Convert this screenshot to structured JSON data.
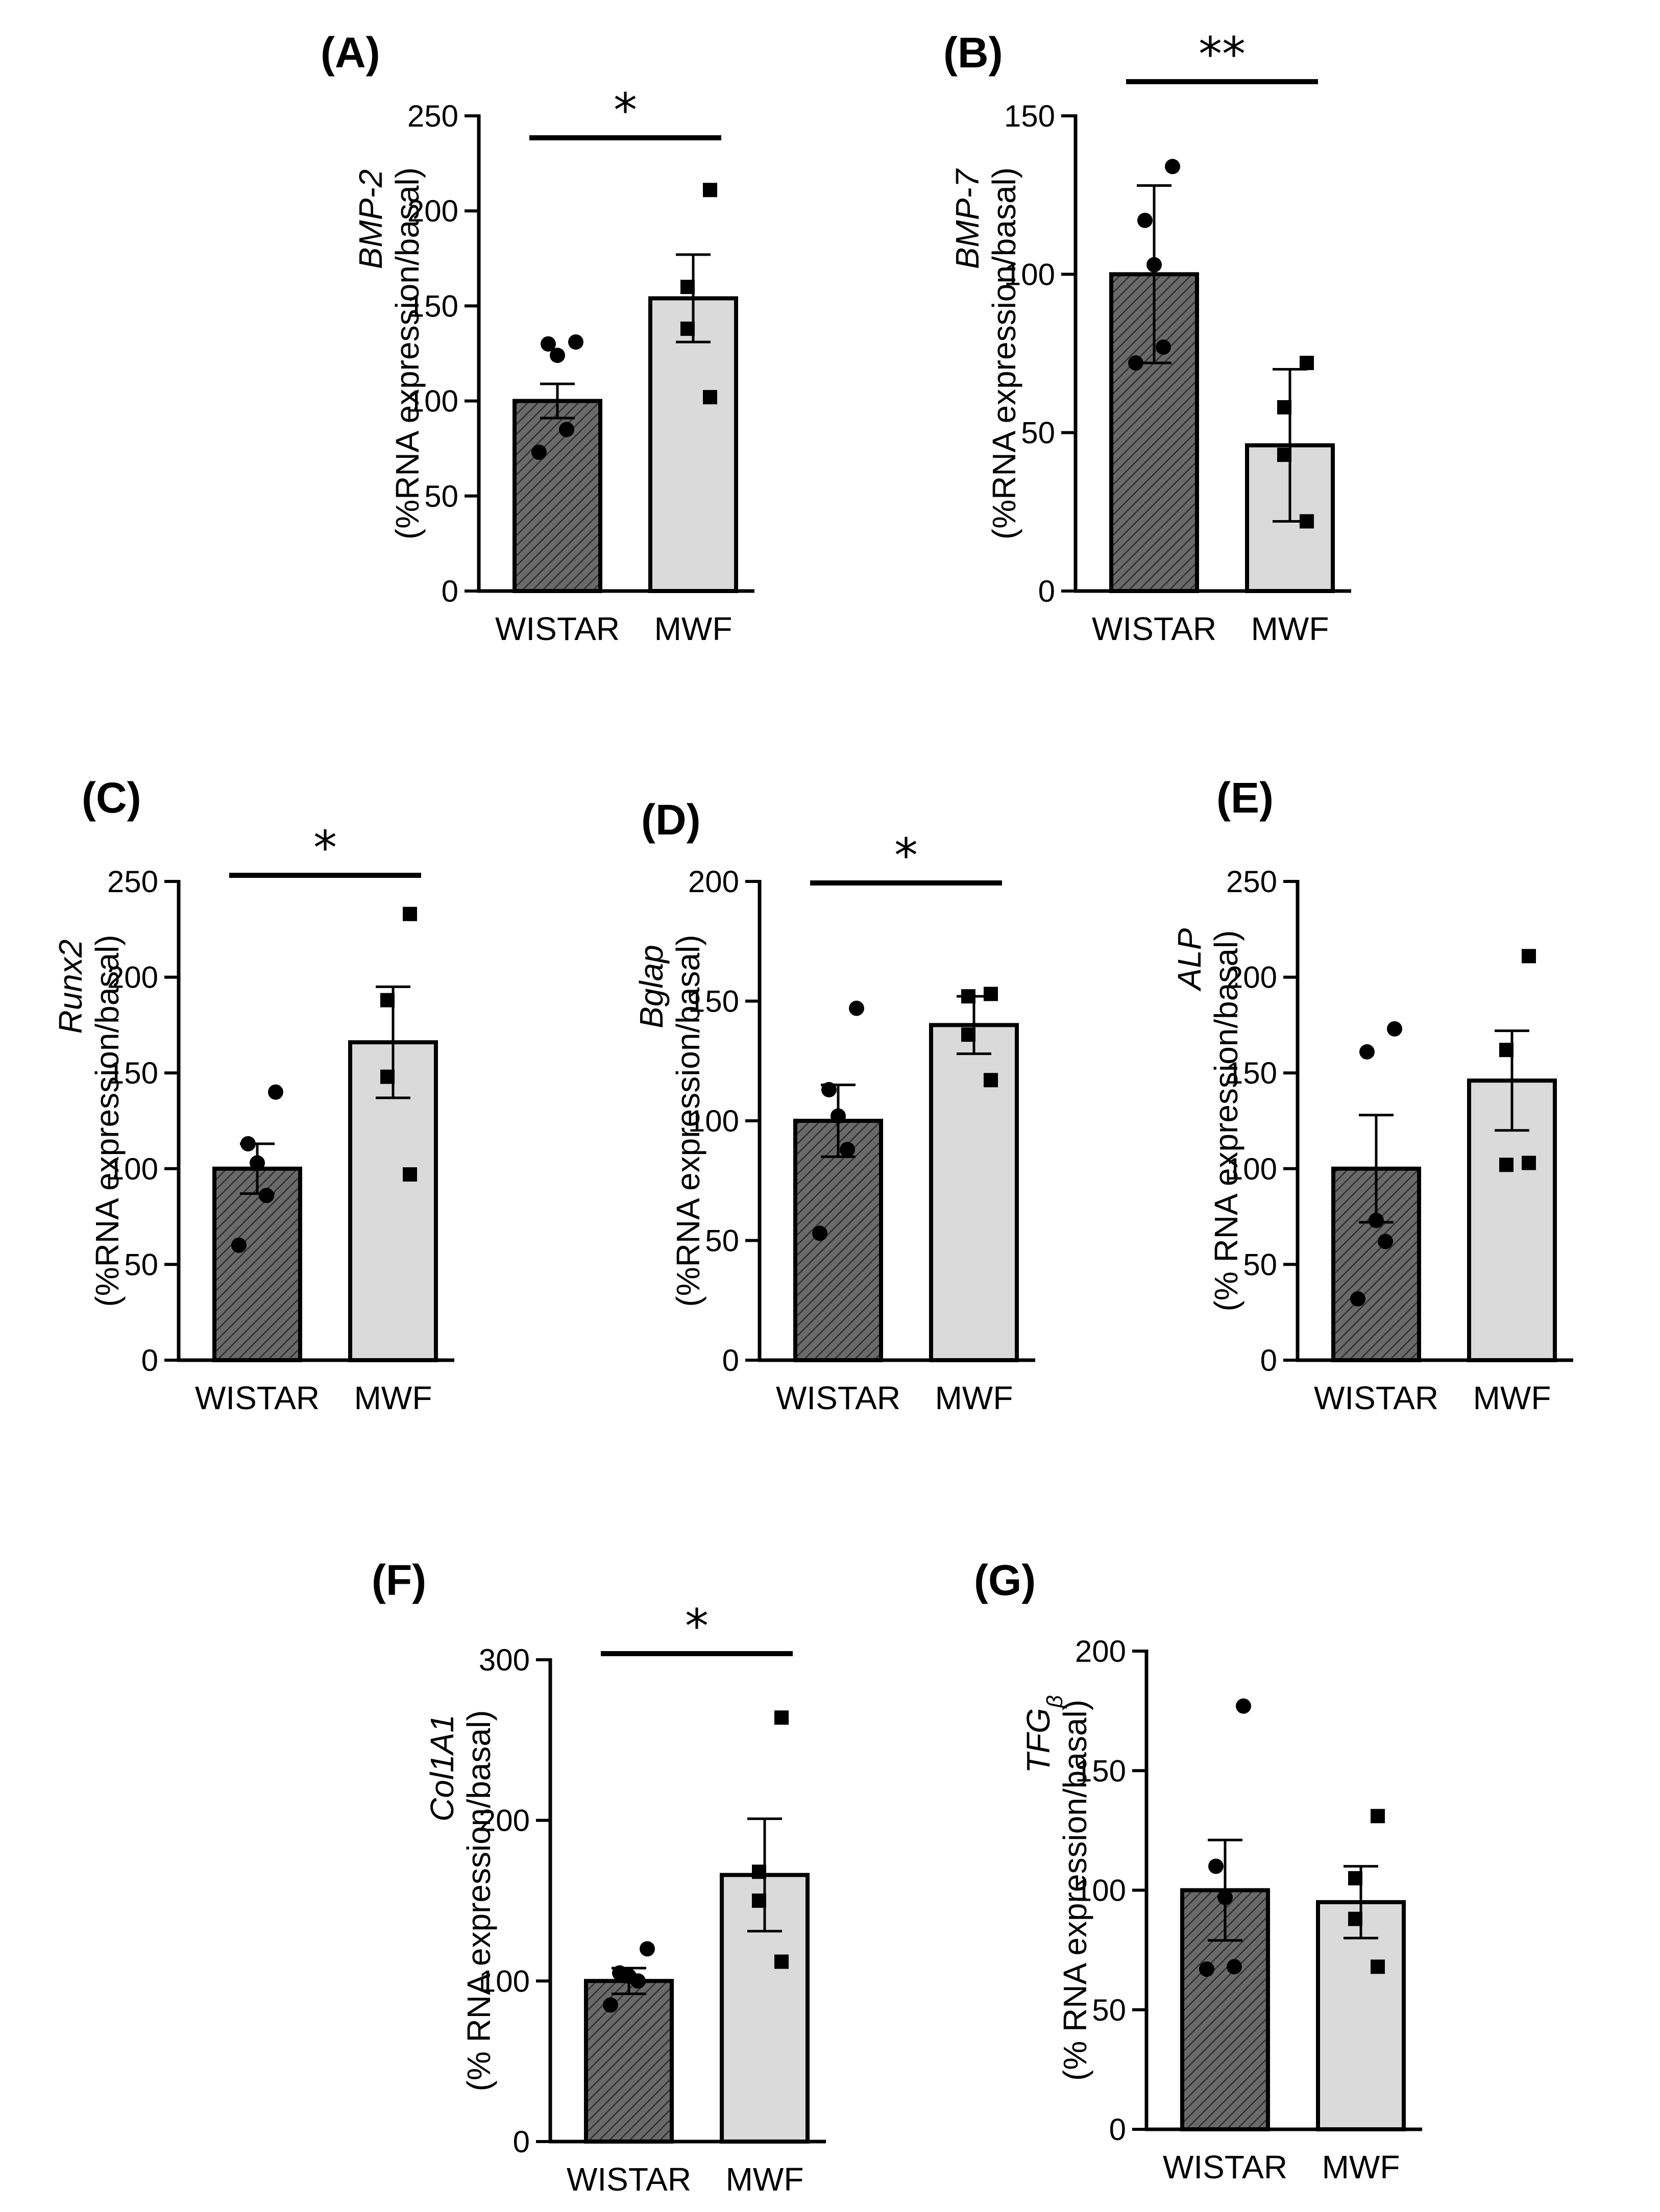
{
  "colors": {
    "wistar_fill": "#666666",
    "mwf_fill": "#dadada",
    "stroke": "#000000"
  },
  "chart_data": [
    {
      "id": "A",
      "panel_label": "(A)",
      "type": "bar",
      "gene": "BMP-2",
      "ylabel": "(%RNA expression/basal)",
      "categories": [
        "WISTAR",
        "MWF"
      ],
      "ylim": [
        0,
        250
      ],
      "yticks": [
        0,
        50,
        100,
        150,
        200,
        250
      ],
      "means": [
        100,
        154
      ],
      "errors": [
        9,
        23
      ],
      "significance": "*",
      "points": [
        [
          131,
          130,
          124,
          85,
          73
        ],
        [
          211,
          160,
          138,
          102
        ]
      ]
    },
    {
      "id": "B",
      "panel_label": "(B)",
      "type": "bar",
      "gene": "BMP-7",
      "ylabel": "(%RNA expression/basal)",
      "categories": [
        "WISTAR",
        "MWF"
      ],
      "ylim": [
        0,
        150
      ],
      "yticks": [
        0,
        50,
        100,
        150
      ],
      "means": [
        100,
        46
      ],
      "errors": [
        28,
        24
      ],
      "significance": "**",
      "points": [
        [
          134,
          117,
          103,
          77,
          72
        ],
        [
          72,
          58,
          43,
          22
        ]
      ]
    },
    {
      "id": "C",
      "panel_label": "(C)",
      "type": "bar",
      "gene": "Runx2",
      "ylabel": "(%RNA expression/basal)",
      "categories": [
        "WISTAR",
        "MWF"
      ],
      "ylim": [
        0,
        250
      ],
      "yticks": [
        0,
        50,
        100,
        150,
        200,
        250
      ],
      "means": [
        100,
        166
      ],
      "errors": [
        13,
        29
      ],
      "significance": "*",
      "points": [
        [
          140,
          113,
          103,
          86,
          60
        ],
        [
          233,
          188,
          148,
          97
        ]
      ]
    },
    {
      "id": "D",
      "panel_label": "(D)",
      "type": "bar",
      "gene": "Bglap",
      "ylabel": "(%RNA expression/basal)",
      "categories": [
        "WISTAR",
        "MWF"
      ],
      "ylim": [
        0,
        200
      ],
      "yticks": [
        0,
        50,
        100,
        150,
        200
      ],
      "means": [
        100,
        140
      ],
      "errors": [
        15,
        12
      ],
      "significance": "*",
      "points": [
        [
          147,
          113,
          102,
          88,
          53
        ],
        [
          153,
          152,
          136,
          117
        ]
      ]
    },
    {
      "id": "E",
      "panel_label": "(E)",
      "type": "bar",
      "gene": "ALP",
      "ylabel": "(% RNA expression/basal)",
      "categories": [
        "WISTAR",
        "MWF"
      ],
      "ylim": [
        0,
        250
      ],
      "yticks": [
        0,
        50,
        100,
        150,
        200,
        250
      ],
      "means": [
        100,
        146
      ],
      "errors": [
        28,
        26
      ],
      "significance": "",
      "points": [
        [
          173,
          161,
          73,
          62,
          32
        ],
        [
          211,
          162,
          102,
          103
        ]
      ]
    },
    {
      "id": "F",
      "panel_label": "(F)",
      "type": "bar",
      "gene": "Col1A1",
      "ylabel": "(% RNA expression/basal)",
      "categories": [
        "WISTAR",
        "MWF"
      ],
      "ylim": [
        0,
        300
      ],
      "yticks": [
        0,
        100,
        200,
        300
      ],
      "means": [
        100,
        166
      ],
      "errors": [
        8,
        35
      ],
      "significance": "*",
      "points": [
        [
          120,
          105,
          103,
          100,
          85
        ],
        [
          264,
          168,
          150,
          112
        ]
      ]
    },
    {
      "id": "G",
      "panel_label": "(G)",
      "type": "bar",
      "gene": "TFG",
      "gene_sub": "β",
      "ylabel": "(% RNA expression/basal)",
      "categories": [
        "WISTAR",
        "MWF"
      ],
      "ylim": [
        0,
        200
      ],
      "yticks": [
        0,
        50,
        100,
        150,
        200
      ],
      "means": [
        100,
        95
      ],
      "errors": [
        21,
        15
      ],
      "significance": "",
      "points": [
        [
          177,
          110,
          97,
          68,
          67
        ],
        [
          131,
          105,
          88,
          68
        ]
      ]
    }
  ]
}
